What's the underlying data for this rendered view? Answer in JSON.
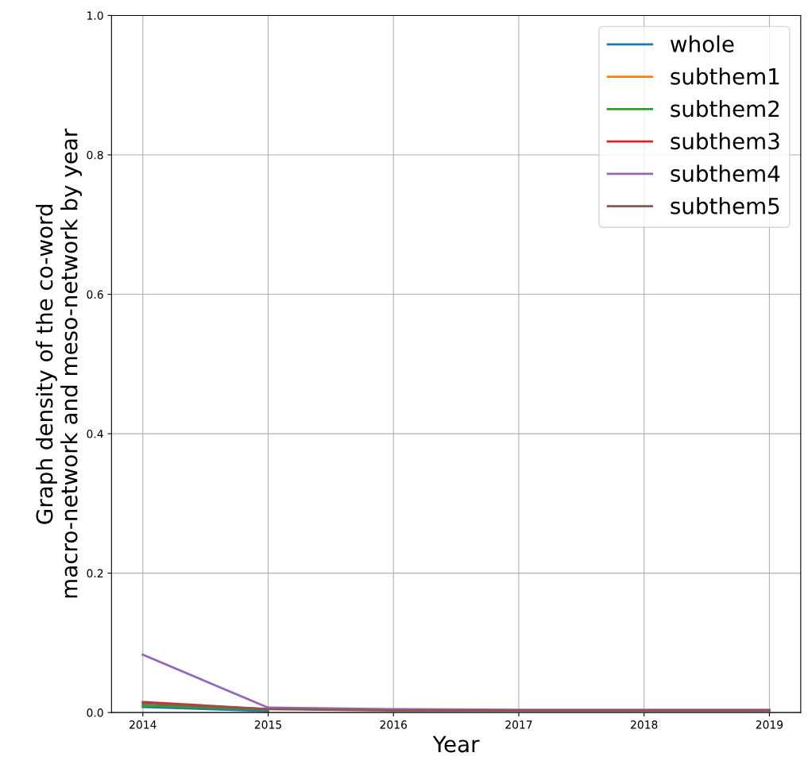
{
  "chart_data": {
    "type": "line",
    "xlabel": "Year",
    "ylabel": "Graph density of the co-word\nmacro-network and meso-network by year",
    "x": [
      2014,
      2015,
      2016,
      2017,
      2018,
      2019
    ],
    "series": [
      {
        "name": "whole",
        "color": "#1f77b4",
        "values": [
          0.008,
          0.002,
          null,
          null,
          null,
          null
        ]
      },
      {
        "name": "subthem1",
        "color": "#ff7f0e",
        "values": [
          null,
          null,
          null,
          null,
          null,
          null
        ]
      },
      {
        "name": "subthem2",
        "color": "#2ca02c",
        "values": [
          0.01,
          0.004,
          null,
          null,
          null,
          null
        ]
      },
      {
        "name": "subthem3",
        "color": "#d62728",
        "values": [
          0.015,
          0.005,
          null,
          null,
          null,
          null
        ]
      },
      {
        "name": "subthem4",
        "color": "#9467bd",
        "values": [
          0.083,
          0.007,
          0.005,
          0.004,
          0.004,
          0.004
        ]
      },
      {
        "name": "subthem5",
        "color": "#8c564b",
        "values": [
          0.013,
          0.005,
          0.003,
          0.003,
          0.003,
          0.003
        ]
      }
    ],
    "xlim": [
      2013.75,
      2019.25
    ],
    "ylim": [
      0,
      1
    ],
    "xticks": [
      2014,
      2015,
      2016,
      2017,
      2018,
      2019
    ],
    "yticks": [
      {
        "value": 0,
        "label": "0.0"
      },
      {
        "value": 0.2,
        "label": "0.2"
      },
      {
        "value": 0.4,
        "label": "0.4"
      },
      {
        "value": 0.6,
        "label": "0.6"
      },
      {
        "value": 0.8,
        "label": "0.8"
      },
      {
        "value": 1,
        "label": "1.0"
      }
    ],
    "grid": true,
    "legend": "upper right",
    "marker": "none",
    "line_style": "solid"
  }
}
